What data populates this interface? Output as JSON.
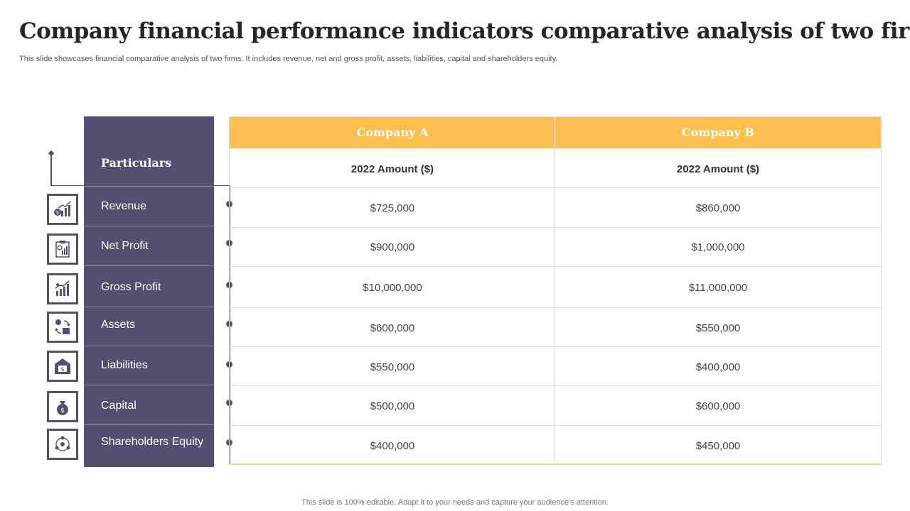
{
  "title": "Company financial performance indicators comparative analysis of two firms",
  "subtitle": "This slide showcases financial comparative analysis of two firms. It includes revenue, net and gross profit, assets, liabilities, capital and shareholders equity.",
  "footer": "This slide is 100% editable. Adapt it to your needs and capture your audience's attention.",
  "colors": {
    "panel": "#524f70",
    "header": "#fbbf4f",
    "border": "#dcdcdc"
  },
  "table": {
    "particulars_label": "Particulars",
    "columns": [
      "Company A",
      "Company B"
    ],
    "subheaders": [
      "2022 Amount ($)",
      "2022 Amount ($)"
    ],
    "rows": [
      {
        "label": "Revenue",
        "icon": "revenue-chart-icon",
        "a": "$725,000",
        "b": "$860,000"
      },
      {
        "label": "Net Profit",
        "icon": "profit-report-icon",
        "a": "$900,000",
        "b": "$1,000,000"
      },
      {
        "label": "Gross Profit",
        "icon": "growth-chart-icon",
        "a": "$10,000,000",
        "b": "$11,000,000"
      },
      {
        "label": "Assets",
        "icon": "assets-exchange-icon",
        "a": "$600,000",
        "b": "$550,000"
      },
      {
        "label": "Liabilities",
        "icon": "liabilities-house-icon",
        "a": "$550,000",
        "b": "$400,000"
      },
      {
        "label": "Capital",
        "icon": "money-bag-icon",
        "a": "$500,000",
        "b": "$600,000"
      },
      {
        "label": "Shareholders Equity",
        "icon": "shareholders-network-icon",
        "a": "$400,000",
        "b": "$450,000"
      }
    ]
  }
}
